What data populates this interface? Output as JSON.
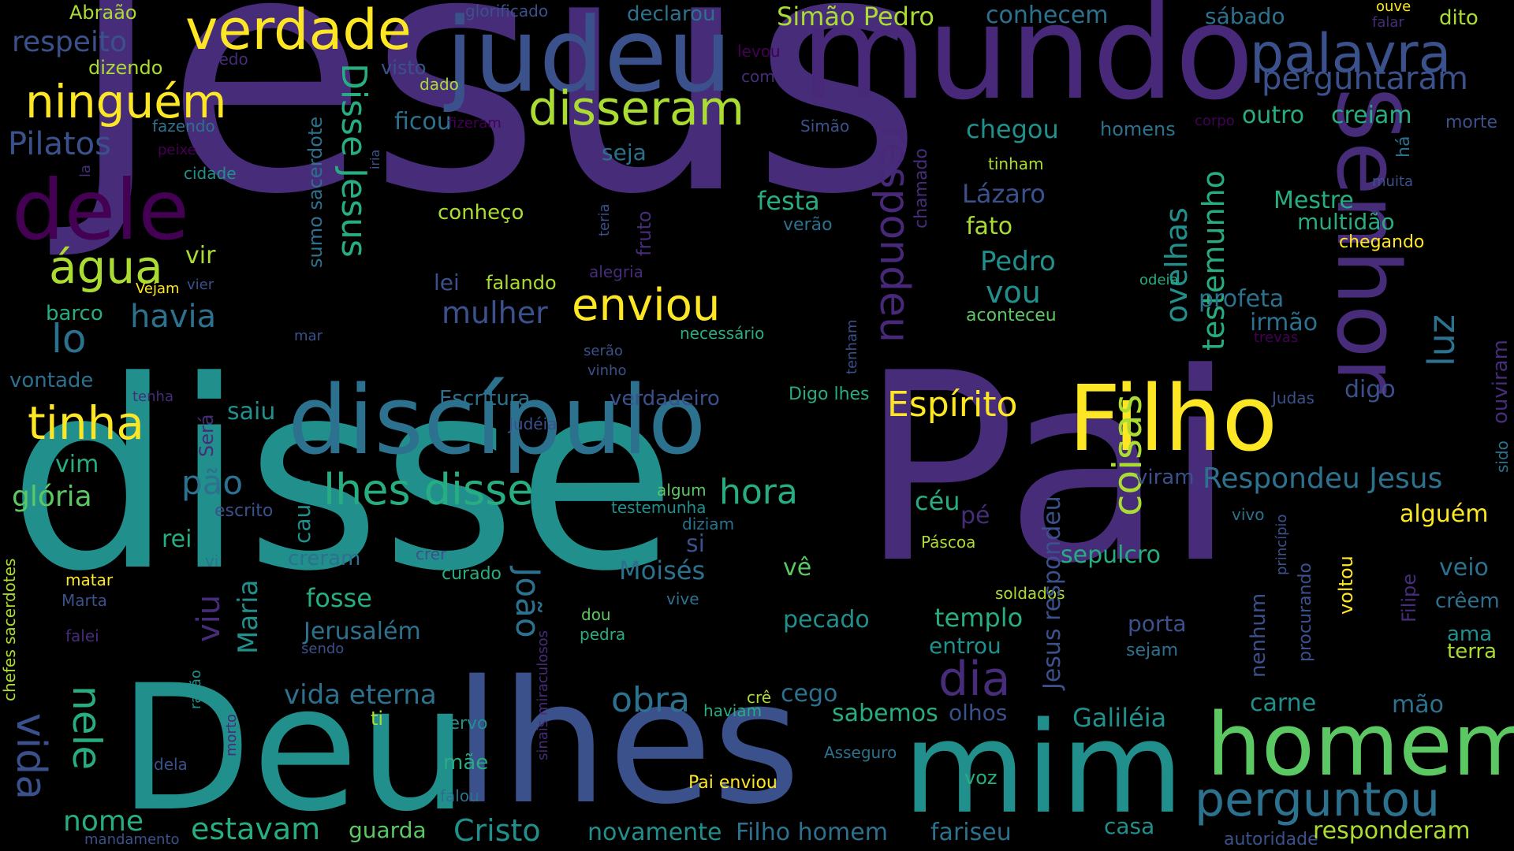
{
  "palette": {
    "background": "#000000",
    "colors": [
      "#472c7a",
      "#3b518b",
      "#2c718e",
      "#21908d",
      "#27ad81",
      "#5cc863",
      "#aadc32",
      "#fde725",
      "#440154",
      "#482878"
    ]
  },
  "words": [
    {
      "text": "Jesus",
      "color": "#472c7a"
    },
    {
      "text": "disse",
      "color": "#21908d"
    },
    {
      "text": "Pai",
      "color": "#472c7a"
    },
    {
      "text": "Deu",
      "color": "#21908d"
    },
    {
      "text": "lhes",
      "color": "#3b518b"
    },
    {
      "text": "mundo",
      "color": "#482878"
    },
    {
      "text": "judeu",
      "color": "#3b518b"
    },
    {
      "text": "mim",
      "color": "#21908d"
    },
    {
      "text": "discípulo",
      "color": "#2c718e"
    },
    {
      "text": "Filho",
      "color": "#fde725"
    },
    {
      "text": "homem",
      "color": "#5cc863"
    },
    {
      "text": "Senhor",
      "color": "#472c7a"
    },
    {
      "text": "dele",
      "color": "#440154"
    },
    {
      "text": "palavra",
      "color": "#3b518b"
    },
    {
      "text": "verdade",
      "color": "#fde725"
    },
    {
      "text": "ninguém",
      "color": "#fde725"
    },
    {
      "text": "disseram",
      "color": "#aadc32"
    },
    {
      "text": "perguntou",
      "color": "#2c718e"
    },
    {
      "text": "água",
      "color": "#aadc32"
    },
    {
      "text": "tinha",
      "color": "#fde725"
    },
    {
      "text": "enviou",
      "color": "#fde725"
    },
    {
      "text": "respondeu",
      "color": "#482878"
    },
    {
      "text": "Disse Jesus",
      "color": "#27ad81"
    },
    {
      "text": "lhes disse",
      "color": "#27ad81"
    },
    {
      "text": "Pilatos",
      "color": "#3b518b"
    },
    {
      "text": "coisas",
      "color": "#aadc32"
    },
    {
      "text": "dia",
      "color": "#472c7a"
    },
    {
      "text": "vida",
      "color": "#3b518b"
    },
    {
      "text": "nele",
      "color": "#27ad81"
    },
    {
      "text": "lo",
      "color": "#2c718e"
    },
    {
      "text": "Espírito",
      "color": "#fde725"
    },
    {
      "text": "perguntaram",
      "color": "#3b518b"
    },
    {
      "text": "respeito",
      "color": "#3b518b"
    },
    {
      "text": "Cristo",
      "color": "#21908d"
    },
    {
      "text": "obra",
      "color": "#2c718e"
    },
    {
      "text": "hora",
      "color": "#27ad81"
    },
    {
      "text": "estavam",
      "color": "#27ad81"
    },
    {
      "text": "havia",
      "color": "#2c718e"
    },
    {
      "text": "luz",
      "color": "#2c718e"
    },
    {
      "text": "testemunho",
      "color": "#27ad81"
    },
    {
      "text": "ovelhas",
      "color": "#21908d"
    },
    {
      "text": "mulher",
      "color": "#3b518b"
    },
    {
      "text": "nome",
      "color": "#27ad81"
    },
    {
      "text": "Respondeu Jesus",
      "color": "#2c718e"
    },
    {
      "text": "pão",
      "color": "#2c718e"
    },
    {
      "text": "glória",
      "color": "#5cc863"
    },
    {
      "text": "vida eterna",
      "color": "#2c718e"
    },
    {
      "text": "João",
      "color": "#2c718e"
    },
    {
      "text": "viu",
      "color": "#472c7a"
    },
    {
      "text": "Maria",
      "color": "#21908d"
    },
    {
      "text": "Moisés",
      "color": "#2c718e"
    },
    {
      "text": "chegou",
      "color": "#21908d"
    },
    {
      "text": "ficou",
      "color": "#2c718e"
    },
    {
      "text": "festa",
      "color": "#27ad81"
    },
    {
      "text": "vou",
      "color": "#21908d"
    },
    {
      "text": "Pedro",
      "color": "#21908d"
    },
    {
      "text": "Lázaro",
      "color": "#3b518b"
    },
    {
      "text": "fato",
      "color": "#aadc32"
    },
    {
      "text": "Mestre",
      "color": "#27ad81"
    },
    {
      "text": "multidão",
      "color": "#27ad81"
    },
    {
      "text": "profeta",
      "color": "#2c718e"
    },
    {
      "text": "irmão",
      "color": "#2c718e"
    },
    {
      "text": "digo",
      "color": "#3b518b"
    },
    {
      "text": "alguém",
      "color": "#fde725"
    },
    {
      "text": "veio",
      "color": "#2c718e"
    },
    {
      "text": "crêem",
      "color": "#2c718e"
    },
    {
      "text": "ama",
      "color": "#21908d"
    },
    {
      "text": "terra",
      "color": "#aadc32"
    },
    {
      "text": "mão",
      "color": "#2c718e"
    },
    {
      "text": "sepulcro",
      "color": "#27ad81"
    },
    {
      "text": "templo",
      "color": "#27ad81"
    },
    {
      "text": "entrou",
      "color": "#21908d"
    },
    {
      "text": "porta",
      "color": "#3b518b"
    },
    {
      "text": "sejam",
      "color": "#2c718e"
    },
    {
      "text": "carne",
      "color": "#21908d"
    },
    {
      "text": "céu",
      "color": "#27ad81"
    },
    {
      "text": "pé",
      "color": "#472c7a"
    },
    {
      "text": "sabemos",
      "color": "#27ad81"
    },
    {
      "text": "olhos",
      "color": "#3b518b"
    },
    {
      "text": "cego",
      "color": "#2c718e"
    },
    {
      "text": "pecado",
      "color": "#21908d"
    },
    {
      "text": "Galiléia",
      "color": "#21908d"
    },
    {
      "text": "Jerusalém",
      "color": "#2c718e"
    },
    {
      "text": "fosse",
      "color": "#27ad81"
    },
    {
      "text": "creram",
      "color": "#2c718e"
    },
    {
      "text": "si",
      "color": "#3b518b"
    },
    {
      "text": "vê",
      "color": "#5cc863"
    },
    {
      "text": "rei",
      "color": "#27ad81"
    },
    {
      "text": "vim",
      "color": "#27ad81"
    },
    {
      "text": "causa",
      "color": "#21908d"
    },
    {
      "text": "saiu",
      "color": "#21908d"
    },
    {
      "text": "vir",
      "color": "#aadc32"
    },
    {
      "text": "barco",
      "color": "#27ad81"
    },
    {
      "text": "vontade",
      "color": "#2c718e"
    },
    {
      "text": "Abraão",
      "color": "#aadc32"
    },
    {
      "text": "dizendo",
      "color": "#aadc32"
    },
    {
      "text": "fazendo",
      "color": "#2c718e"
    },
    {
      "text": "cidade",
      "color": "#21908d"
    },
    {
      "text": "Simão Pedro",
      "color": "#aadc32"
    },
    {
      "text": "conhecem",
      "color": "#2c718e"
    },
    {
      "text": "declarou",
      "color": "#2c718e"
    },
    {
      "text": "glorificado",
      "color": "#3b518b"
    },
    {
      "text": "sábado",
      "color": "#2c718e"
    },
    {
      "text": "ouve",
      "color": "#fde725"
    },
    {
      "text": "falar",
      "color": "#472c7a"
    },
    {
      "text": "dito",
      "color": "#aadc32"
    },
    {
      "text": "outro",
      "color": "#27ad81"
    },
    {
      "text": "creiam",
      "color": "#27ad81"
    },
    {
      "text": "homens",
      "color": "#2c718e"
    },
    {
      "text": "corpo",
      "color": "#440154"
    },
    {
      "text": "morte",
      "color": "#3b518b"
    },
    {
      "text": "visto",
      "color": "#3b518b"
    },
    {
      "text": "dado",
      "color": "#aadc32"
    },
    {
      "text": "medo",
      "color": "#472c7a"
    },
    {
      "text": "levou",
      "color": "#440154"
    },
    {
      "text": "comer",
      "color": "#472c7a"
    },
    {
      "text": "fizeram",
      "color": "#440154"
    },
    {
      "text": "Simão",
      "color": "#3b518b"
    },
    {
      "text": "seja",
      "color": "#2c718e"
    },
    {
      "text": "peixe",
      "color": "#440154"
    },
    {
      "text": "chamado",
      "color": "#472c7a"
    },
    {
      "text": "tinham",
      "color": "#aadc32"
    },
    {
      "text": "sumo sacerdote",
      "color": "#2c718e"
    },
    {
      "text": "iria",
      "color": "#3b518b"
    },
    {
      "text": "la",
      "color": "#472c7a"
    },
    {
      "text": "conheço",
      "color": "#aadc32"
    },
    {
      "text": "fruto",
      "color": "#472c7a"
    },
    {
      "text": "teria",
      "color": "#3b518b"
    },
    {
      "text": "verão",
      "color": "#2c718e"
    },
    {
      "text": "alegria",
      "color": "#472c7a"
    },
    {
      "text": "falando",
      "color": "#aadc32"
    },
    {
      "text": "lei",
      "color": "#3b518b"
    },
    {
      "text": "Vejam",
      "color": "#fde725"
    },
    {
      "text": "vier",
      "color": "#3b518b"
    },
    {
      "text": "mar",
      "color": "#3b518b"
    },
    {
      "text": "serão",
      "color": "#3b518b"
    },
    {
      "text": "vinho",
      "color": "#3b518b"
    },
    {
      "text": "necessário",
      "color": "#27ad81"
    },
    {
      "text": "tenham",
      "color": "#3b518b"
    },
    {
      "text": "aconteceu",
      "color": "#5cc863"
    },
    {
      "text": "odeia",
      "color": "#27ad81"
    },
    {
      "text": "muita",
      "color": "#3b518b"
    },
    {
      "text": "chegando",
      "color": "#fde725"
    },
    {
      "text": "há",
      "color": "#2c718e"
    },
    {
      "text": "trevas",
      "color": "#440154"
    },
    {
      "text": "ouviram",
      "color": "#472c7a"
    },
    {
      "text": "sido",
      "color": "#2c718e"
    },
    {
      "text": "Judas",
      "color": "#3b518b"
    },
    {
      "text": "Escritura",
      "color": "#2c718e"
    },
    {
      "text": "verdadeiro",
      "color": "#3b518b"
    },
    {
      "text": "Digo lhes",
      "color": "#27ad81"
    },
    {
      "text": "tenha",
      "color": "#472c7a"
    },
    {
      "text": "Será",
      "color": "#472c7a"
    },
    {
      "text": "Judéia",
      "color": "#3b518b"
    },
    {
      "text": "viram",
      "color": "#3b518b"
    },
    {
      "text": "algum",
      "color": "#5cc863"
    },
    {
      "text": "testemunha",
      "color": "#21908d"
    },
    {
      "text": "diziam",
      "color": "#2c718e"
    },
    {
      "text": "escrito",
      "color": "#3b518b"
    },
    {
      "text": "Páscoa",
      "color": "#aadc32"
    },
    {
      "text": "vivo",
      "color": "#2c718e"
    },
    {
      "text": "princípio",
      "color": "#3b518b"
    },
    {
      "text": "procurando",
      "color": "#3b518b"
    },
    {
      "text": "nenhum",
      "color": "#3b518b"
    },
    {
      "text": "voltou",
      "color": "#fde725"
    },
    {
      "text": "Filipe",
      "color": "#472c7a"
    },
    {
      "text": "vi",
      "color": "#2c718e"
    },
    {
      "text": "crer",
      "color": "#3b518b"
    },
    {
      "text": "curado",
      "color": "#27ad81"
    },
    {
      "text": "soldados",
      "color": "#aadc32"
    },
    {
      "text": "matar",
      "color": "#fde725"
    },
    {
      "text": "Marta",
      "color": "#3b518b"
    },
    {
      "text": "falei",
      "color": "#472c7a"
    },
    {
      "text": "sendo",
      "color": "#3b518b"
    },
    {
      "text": "razão",
      "color": "#21908d"
    },
    {
      "text": "chefes sacerdotes",
      "color": "#aadc32"
    },
    {
      "text": "sinais miraculosos",
      "color": "#472c7a"
    },
    {
      "text": "dou",
      "color": "#5cc863"
    },
    {
      "text": "pedra",
      "color": "#27ad81"
    },
    {
      "text": "vive",
      "color": "#2c718e"
    },
    {
      "text": "Jesus respondeu",
      "color": "#3b518b"
    },
    {
      "text": "crê",
      "color": "#aadc32"
    },
    {
      "text": "haviam",
      "color": "#27ad81"
    },
    {
      "text": "ti",
      "color": "#aadc32"
    },
    {
      "text": "servo",
      "color": "#21908d"
    },
    {
      "text": "mãe",
      "color": "#27ad81"
    },
    {
      "text": "falou",
      "color": "#2c718e"
    },
    {
      "text": "dela",
      "color": "#3b518b"
    },
    {
      "text": "morto",
      "color": "#472c7a"
    },
    {
      "text": "Asseguro",
      "color": "#2c718e"
    },
    {
      "text": "voz",
      "color": "#27ad81"
    },
    {
      "text": "Pai enviou",
      "color": "#fde725"
    },
    {
      "text": "guarda",
      "color": "#5cc863"
    },
    {
      "text": "novamente",
      "color": "#21908d"
    },
    {
      "text": "Filho homem",
      "color": "#2c718e"
    },
    {
      "text": "fariseu",
      "color": "#2c718e"
    },
    {
      "text": "casa",
      "color": "#21908d"
    },
    {
      "text": "autoridade",
      "color": "#3b518b"
    },
    {
      "text": "responderam",
      "color": "#aadc32"
    },
    {
      "text": "mandamento",
      "color": "#3b518b"
    }
  ]
}
